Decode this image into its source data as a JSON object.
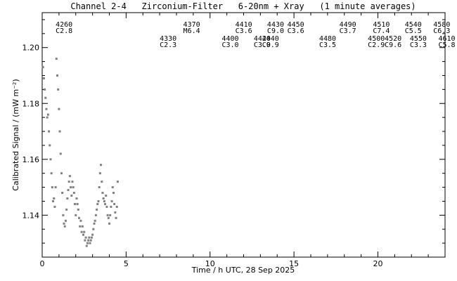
{
  "chart_data": {
    "type": "scatter",
    "title": "Channel 2-4   Zirconium-Filter   6-20nm + Xray   (1 minute averages)",
    "xlabel": "Time / h UTC, 28 Sep 2025",
    "ylabel": "Calibrated Signal / (mW m⁻²)",
    "xlim": [
      0,
      24
    ],
    "ylim": [
      1.125,
      1.2125
    ],
    "xticks": [
      0,
      5,
      10,
      15,
      20
    ],
    "yticks": [
      1.14,
      1.16,
      1.18,
      1.2
    ],
    "xtick_labels": [
      "0",
      "5",
      "10",
      "15",
      "20"
    ],
    "ytick_labels": [
      "1.14",
      "1.16",
      "1.18",
      "1.20"
    ],
    "grid": false,
    "colors": {
      "points": "#808080",
      "axes": "#000000",
      "text": "#000000"
    },
    "events": [
      {
        "x": 0.8,
        "number": "4260",
        "class": "C2.8",
        "row": "upper"
      },
      {
        "x": 7.0,
        "number": "4330",
        "class": "C2.3",
        "row": "lower"
      },
      {
        "x": 8.4,
        "number": "4370",
        "class": "M6.4",
        "row": "upper"
      },
      {
        "x": 10.7,
        "number": "4400",
        "class": "C3.0",
        "row": "lower"
      },
      {
        "x": 11.5,
        "number": "4410",
        "class": "C3.6",
        "row": "upper"
      },
      {
        "x": 12.6,
        "number": "4420",
        "class": "C3.0",
        "row": "lower"
      },
      {
        "x": 13.1,
        "number": "4440",
        "class": "C9.9",
        "row": "lower"
      },
      {
        "x": 13.4,
        "number": "4430",
        "class": "C9.0",
        "row": "upper"
      },
      {
        "x": 14.6,
        "number": "4450",
        "class": "C3.6",
        "row": "upper"
      },
      {
        "x": 16.5,
        "number": "4480",
        "class": "C3.5",
        "row": "lower"
      },
      {
        "x": 17.7,
        "number": "4490",
        "class": "C3.7",
        "row": "upper"
      },
      {
        "x": 19.4,
        "number": "4500",
        "class": "C2.9",
        "row": "lower"
      },
      {
        "x": 19.7,
        "number": "4510",
        "class": "C7.4",
        "row": "upper"
      },
      {
        "x": 20.4,
        "number": "4520",
        "class": "C9.6",
        "row": "lower"
      },
      {
        "x": 21.6,
        "number": "4540",
        "class": "C5.5",
        "row": "upper"
      },
      {
        "x": 21.9,
        "number": "4550",
        "class": "C3.3",
        "row": "lower"
      },
      {
        "x": 23.3,
        "number": "4580",
        "class": "C6.3",
        "row": "upper"
      },
      {
        "x": 23.6,
        "number": "4610",
        "class": "C5.8",
        "row": "lower"
      }
    ],
    "series": [
      {
        "x": [
          0.05,
          0.1,
          0.15,
          0.2,
          0.25,
          0.3,
          0.35,
          0.4,
          0.45,
          0.5,
          0.55,
          0.6,
          0.65,
          0.7,
          0.75,
          0.8,
          0.85,
          0.9,
          0.95,
          1.0,
          1.05,
          1.1,
          1.15,
          1.2,
          1.25,
          1.3,
          1.35,
          1.4,
          1.45,
          1.5,
          1.55,
          1.6,
          1.65,
          1.7,
          1.75,
          1.8,
          1.85,
          1.9,
          1.95,
          2.0,
          2.05,
          2.1,
          2.15,
          2.2,
          2.25,
          2.3,
          2.35,
          2.4,
          2.45,
          2.5,
          2.55,
          2.6,
          2.65,
          2.7,
          2.75,
          2.8,
          2.85,
          2.9,
          2.95,
          3.0,
          3.05,
          3.1,
          3.15,
          3.2,
          3.25,
          3.3,
          3.35,
          3.4,
          3.45,
          3.5,
          3.55,
          3.6,
          3.65,
          3.7,
          3.75,
          3.8,
          3.85,
          3.9,
          3.95,
          4.0,
          4.05,
          4.1,
          4.15,
          4.2,
          4.25,
          4.3,
          4.35,
          4.4,
          4.45,
          4.5
        ],
        "y": [
          1.193,
          1.189,
          1.185,
          1.182,
          1.178,
          1.175,
          1.176,
          1.17,
          1.165,
          1.16,
          1.155,
          1.15,
          1.145,
          1.146,
          1.143,
          1.15,
          1.196,
          1.19,
          1.185,
          1.178,
          1.17,
          1.162,
          1.155,
          1.148,
          1.14,
          1.137,
          1.136,
          1.138,
          1.142,
          1.146,
          1.149,
          1.152,
          1.154,
          1.15,
          1.147,
          1.152,
          1.15,
          1.148,
          1.144,
          1.14,
          1.146,
          1.144,
          1.142,
          1.139,
          1.136,
          1.138,
          1.134,
          1.136,
          1.133,
          1.134,
          1.131,
          1.132,
          1.129,
          1.13,
          1.131,
          1.132,
          1.13,
          1.131,
          1.132,
          1.133,
          1.135,
          1.137,
          1.138,
          1.14,
          1.142,
          1.144,
          1.145,
          1.15,
          1.155,
          1.158,
          1.152,
          1.148,
          1.146,
          1.145,
          1.144,
          1.147,
          1.143,
          1.14,
          1.139,
          1.137,
          1.14,
          1.143,
          1.145,
          1.15,
          1.148,
          1.144,
          1.141,
          1.139,
          1.143,
          1.152
        ]
      }
    ]
  }
}
